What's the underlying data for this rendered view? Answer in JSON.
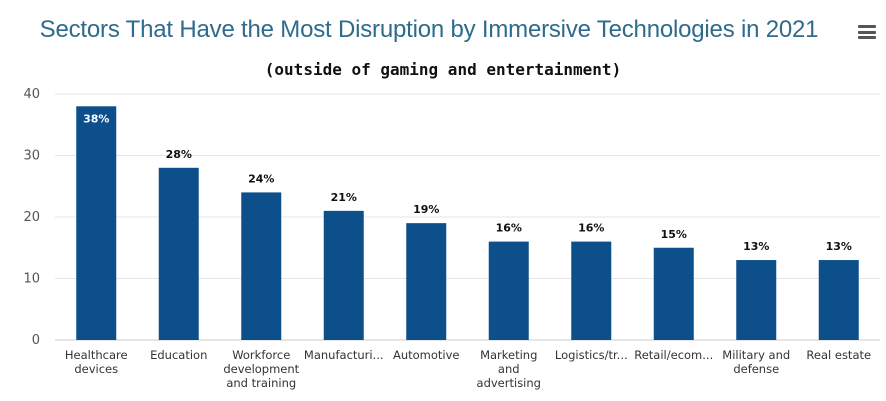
{
  "chart_data": {
    "type": "bar",
    "title": "Sectors That Have the Most Disruption by Immersive Technologies in 2021",
    "subtitle": "(outside of gaming and entertainment)",
    "categories": [
      "Healthcare devices",
      "Education",
      "Workforce development and training",
      "Manufacturi...",
      "Automotive",
      "Marketing and advertising",
      "Logistics/tr...",
      "Retail/ecom...",
      "Military and defense",
      "Real estate"
    ],
    "category_lines": [
      [
        "Healthcare",
        "devices"
      ],
      [
        "Education"
      ],
      [
        "Workforce",
        "development",
        "and training"
      ],
      [
        "Manufacturi..."
      ],
      [
        "Automotive"
      ],
      [
        "Marketing",
        "and",
        "advertising"
      ],
      [
        "Logistics/tr..."
      ],
      [
        "Retail/ecom..."
      ],
      [
        "Military and",
        "defense"
      ],
      [
        "Real estate"
      ]
    ],
    "values": [
      38,
      28,
      24,
      21,
      19,
      16,
      16,
      15,
      13,
      13
    ],
    "data_labels": [
      "38%",
      "28%",
      "24%",
      "21%",
      "19%",
      "16%",
      "16%",
      "15%",
      "13%",
      "13%"
    ],
    "yticks": [
      0,
      10,
      20,
      30,
      40
    ],
    "ylim": [
      0,
      40
    ],
    "grid": true,
    "legend": "none",
    "colors": {
      "bar": "#0d4f8b",
      "grid": "#e6e6e6",
      "title": "#2e6b8c"
    }
  },
  "menu": {
    "icon": "hamburger-menu-icon"
  }
}
